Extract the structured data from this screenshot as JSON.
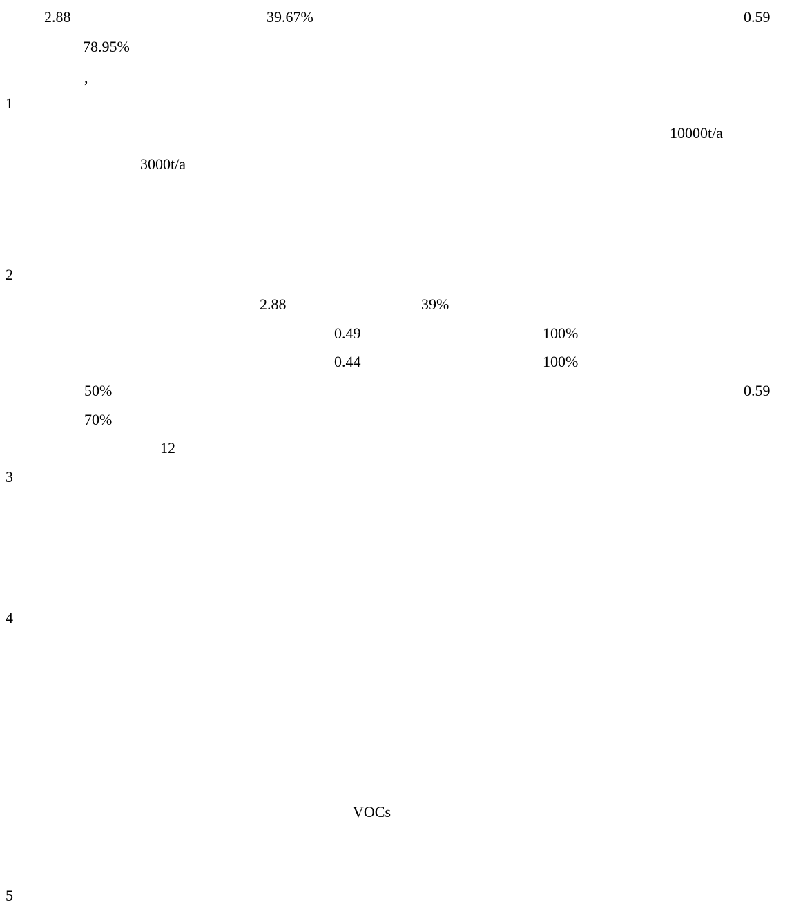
{
  "document": {
    "para_top": {
      "value_a": "2.88",
      "pct_a": "39.67%",
      "value_b": "0.59",
      "pct_b": "78.95%",
      "comma": ","
    },
    "section_1": {
      "number": "1",
      "capacity_a": "10000t/a",
      "capacity_b": "3000t/a"
    },
    "section_2": {
      "number": "2",
      "value_a": "2.88",
      "pct_a": "39%",
      "value_b": "0.49",
      "pct_b": "100%",
      "value_c": "0.44",
      "pct_c": "100%",
      "pct_d": "50%",
      "value_d": "0.59",
      "pct_e": "70%",
      "count": "12"
    },
    "section_3": {
      "number": "3"
    },
    "section_4": {
      "number": "4",
      "term": "VOCs"
    },
    "section_5": {
      "number": "5"
    }
  }
}
